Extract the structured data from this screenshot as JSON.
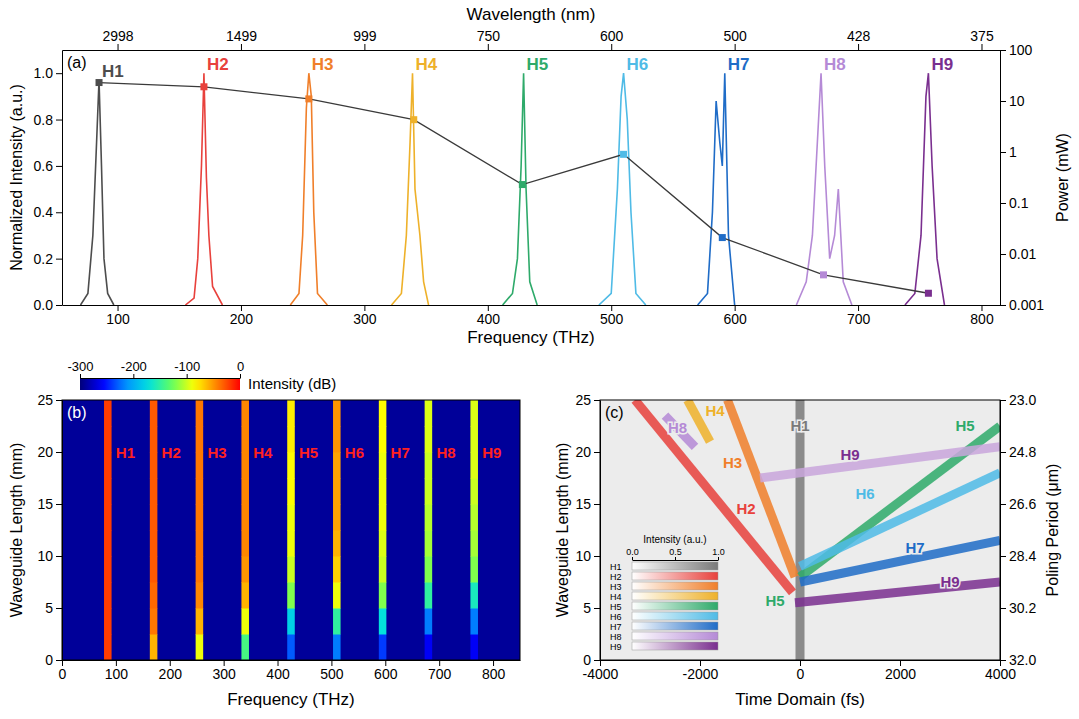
{
  "chart_data": [
    {
      "type": "line",
      "panel_label": "(a)",
      "x_label": "Frequency (THz)",
      "x2_label": "Wavelength (nm)",
      "y_label": "Normalized Intensity (a.u.)",
      "y2_label": "Power (mW)",
      "xlim": [
        55,
        815
      ],
      "xticks": [
        100,
        200,
        300,
        400,
        500,
        600,
        700,
        800
      ],
      "x2ticks": [
        {
          "value": 100,
          "label": "2998"
        },
        {
          "value": 200,
          "label": "1499"
        },
        {
          "value": 300,
          "label": "999"
        },
        {
          "value": 400,
          "label": "750"
        },
        {
          "value": 500,
          "label": "600"
        },
        {
          "value": 600,
          "label": "500"
        },
        {
          "value": 700,
          "label": "428"
        },
        {
          "value": 800,
          "label": "375"
        }
      ],
      "ylim": [
        0,
        1.1
      ],
      "yticks": [
        {
          "value": 0,
          "label": "0.0"
        },
        0.2,
        0.4,
        0.6,
        0.8,
        {
          "value": 1,
          "label": "1.0"
        }
      ],
      "y2lim": [
        0.001,
        100
      ],
      "y2ticks": [
        0.001,
        0.01,
        0.1,
        1,
        10,
        100
      ],
      "series": [
        {
          "name": "H1",
          "color": "#4d4d4d",
          "x": [
            70,
            76,
            80,
            83,
            85,
            87,
            89,
            92,
            97
          ],
          "values": [
            0,
            0.05,
            0.3,
            0.7,
            0.97,
            0.6,
            0.2,
            0.05,
            0
          ]
        },
        {
          "name": "H2",
          "color": "#e8413c",
          "x": [
            155,
            162,
            165,
            168,
            170,
            172,
            174,
            177,
            185
          ],
          "values": [
            0,
            0.03,
            0.2,
            0.6,
            1.0,
            0.55,
            0.3,
            0.08,
            0
          ]
        },
        {
          "name": "H3",
          "color": "#f07f2a",
          "x": [
            240,
            247,
            250,
            253,
            255,
            257,
            259,
            262,
            270
          ],
          "values": [
            0,
            0.05,
            0.3,
            0.85,
            1.0,
            0.9,
            0.4,
            0.05,
            0
          ]
        },
        {
          "name": "H4",
          "color": "#eeb12a",
          "x": [
            322,
            330,
            334,
            337,
            339,
            341,
            343,
            345,
            348,
            352
          ],
          "values": [
            0,
            0.05,
            0.3,
            0.7,
            1.0,
            0.5,
            0.4,
            0.3,
            0.1,
            0
          ]
        },
        {
          "name": "H5",
          "color": "#2eaa6a",
          "x": [
            412,
            420,
            424,
            427,
            429,
            431,
            434,
            440
          ],
          "values": [
            0,
            0.05,
            0.2,
            0.6,
            1.0,
            0.5,
            0.1,
            0
          ]
        },
        {
          "name": "H6",
          "color": "#4fbbe6",
          "x": [
            490,
            500,
            505,
            508,
            510,
            513,
            516,
            520,
            528
          ],
          "values": [
            0,
            0.05,
            0.5,
            0.9,
            1.0,
            0.8,
            0.4,
            0.05,
            0
          ]
        },
        {
          "name": "H7",
          "color": "#1f6cc7",
          "x": [
            570,
            578,
            582,
            585,
            588,
            590,
            592,
            595,
            600
          ],
          "values": [
            0,
            0.05,
            0.4,
            0.88,
            0.7,
            0.6,
            1.0,
            0.3,
            0
          ]
        },
        {
          "name": "H8",
          "color": "#b58ad6",
          "x": [
            650,
            658,
            663,
            667,
            670,
            673,
            677,
            681,
            684,
            688,
            695
          ],
          "values": [
            0,
            0.1,
            0.3,
            0.7,
            1.0,
            0.6,
            0.2,
            0.3,
            0.5,
            0.1,
            0
          ]
        },
        {
          "name": "H9",
          "color": "#7a2f8f",
          "x": [
            738,
            746,
            751,
            755,
            757,
            760,
            764,
            770
          ],
          "values": [
            0,
            0.05,
            0.3,
            0.9,
            1.0,
            0.6,
            0.2,
            0
          ]
        },
        {
          "type": "line",
          "axis": "y2",
          "log": true,
          "marker": "square",
          "color": "#3a3a3a",
          "colors": [
            "#4d4d4d",
            "#e8413c",
            "#f07f2a",
            "#eeb12a",
            "#2eaa6a",
            "#4fbbe6",
            "#1f6cc7",
            "#b58ad6",
            "#7a2f8f"
          ],
          "x": [
            85,
            170,
            255,
            340,
            428,
            510,
            590,
            672,
            757
          ],
          "values": [
            23,
            19,
            11,
            4.3,
            0.23,
            0.9,
            0.021,
            0.0039,
            0.0017
          ]
        }
      ]
    },
    {
      "type": "heatmap",
      "panel_label": "(b)",
      "x_label": "Frequency (THz)",
      "y_label": "Waveguide Length (mm)",
      "xlim": [
        0,
        850
      ],
      "xticks": [
        0,
        100,
        200,
        300,
        400,
        500,
        600,
        700,
        800
      ],
      "ylim": [
        0,
        25
      ],
      "yticks": [
        0,
        5,
        10,
        15,
        20,
        25
      ],
      "labels": [
        "H1",
        "H2",
        "H3",
        "H4",
        "H5",
        "H6",
        "H7",
        "H8",
        "H9"
      ],
      "band_centers": [
        85,
        170,
        255,
        340,
        425,
        510,
        595,
        680,
        765
      ],
      "band_width": 14,
      "y_bins": [
        0,
        2.5,
        5,
        7.5,
        10,
        12.5,
        15,
        17.5,
        20,
        22.5,
        25
      ],
      "cells": [
        [
          -20,
          -20,
          -20,
          -20,
          -20,
          -20,
          -20,
          -20,
          -20,
          -20
        ],
        [
          -60,
          -40,
          -35,
          -30,
          -30,
          -30,
          -30,
          -30,
          -30,
          -30
        ],
        [
          -90,
          -60,
          -45,
          -40,
          -40,
          -40,
          -40,
          -40,
          -40,
          -40
        ],
        [
          -140,
          -90,
          -60,
          -50,
          -45,
          -45,
          -45,
          -45,
          -45,
          -45
        ],
        [
          -230,
          -180,
          -120,
          -100,
          -90,
          -90,
          -85,
          -85,
          -80,
          -80
        ],
        [
          -220,
          -150,
          -90,
          -70,
          -60,
          -55,
          -55,
          -55,
          -50,
          -50
        ],
        [
          -240,
          -170,
          -120,
          -100,
          -95,
          -90,
          -90,
          -90,
          -85,
          -85
        ],
        [
          -260,
          -220,
          -150,
          -120,
          -110,
          -105,
          -100,
          -100,
          -95,
          -95
        ],
        [
          -260,
          -220,
          -160,
          -120,
          -110,
          -105,
          -100,
          -95,
          -95,
          -95
        ]
      ],
      "background": -290,
      "colorbar": {
        "label": "Intensity (dB)",
        "range": [
          -300,
          0
        ],
        "ticks": [
          -300,
          -200,
          -100,
          0
        ]
      }
    },
    {
      "type": "line",
      "panel_label": "(c)",
      "x_label": "Time Domain (fs)",
      "y_label": "Waveguide Length (mm)",
      "y2_label": "Poling Period (μm)",
      "xlim": [
        -4000,
        4000
      ],
      "xticks": [
        -4000,
        -2000,
        0,
        2000,
        4000
      ],
      "ylim": [
        0,
        25
      ],
      "yticks": [
        0,
        5,
        10,
        15,
        20,
        25
      ],
      "y2lim": [
        32,
        23
      ],
      "y2ticks": [
        {
          "value": 23,
          "label": "23.0"
        },
        24.8,
        26.6,
        28.4,
        30.2,
        {
          "value": 32,
          "label": "32.0"
        }
      ],
      "legend": "lower left",
      "colorbar": {
        "label": "Intensity (a.u.)",
        "range": [
          0,
          1
        ],
        "ticks": [
          {
            "value": 0,
            "label": "0.0"
          },
          0.5,
          {
            "value": 1,
            "label": "1.0"
          }
        ]
      },
      "series": [
        {
          "name": "H1",
          "color": "#7a7a7a",
          "x": [
            0,
            0
          ],
          "values": [
            0,
            25
          ]
        },
        {
          "name": "H2",
          "color": "#e8413c",
          "x": [
            -150,
            -3300
          ],
          "values": [
            6.5,
            25
          ]
        },
        {
          "name": "H3",
          "color": "#f07f2a",
          "x": [
            -100,
            -1450
          ],
          "values": [
            8,
            25
          ]
        },
        {
          "name": "H4",
          "color": "#eeb12a",
          "x": [
            -1800,
            -2250
          ],
          "values": [
            21,
            25
          ]
        },
        {
          "name": "H5",
          "color": "#2eaa6a",
          "x": [
            0,
            4000
          ],
          "values": [
            8,
            22.5
          ]
        },
        {
          "name": "H6",
          "color": "#4fbbe6",
          "x": [
            0,
            4000
          ],
          "values": [
            9,
            18
          ]
        },
        {
          "name": "H7",
          "color": "#1f6cc7",
          "x": [
            0,
            4000
          ],
          "values": [
            7.5,
            11.5
          ]
        },
        {
          "name": "H8",
          "color": "#b58ad6",
          "x": [
            -2100,
            -2700
          ],
          "values": [
            20.5,
            23.5
          ]
        },
        {
          "name": "H9",
          "color": "#7a2f8f",
          "x": [
            -100,
            4000
          ],
          "values": [
            5.5,
            7.5
          ]
        },
        {
          "name": "H9",
          "color": "#c9a6dc",
          "x": [
            -800,
            4000
          ],
          "values": [
            17.5,
            20.5
          ]
        }
      ],
      "annotations": [
        {
          "text": "H8",
          "x": -2450,
          "y": 21.8
        },
        {
          "text": "H4",
          "x": -1700,
          "y": 23.5
        },
        {
          "text": "H3",
          "x": -1350,
          "y": 18.5
        },
        {
          "text": "H1",
          "x": 0,
          "y": 22
        },
        {
          "text": "H2",
          "x": -1080,
          "y": 14
        },
        {
          "text": "H5",
          "x": 3300,
          "y": 22
        },
        {
          "text": "H9",
          "x": 1000,
          "y": 19.2
        },
        {
          "text": "H6",
          "x": 1300,
          "y": 15.5
        },
        {
          "text": "H5",
          "x": -500,
          "y": 5.2
        },
        {
          "text": "H7",
          "x": 2300,
          "y": 10.3
        },
        {
          "text": "H9",
          "x": 3000,
          "y": 7
        }
      ]
    }
  ]
}
